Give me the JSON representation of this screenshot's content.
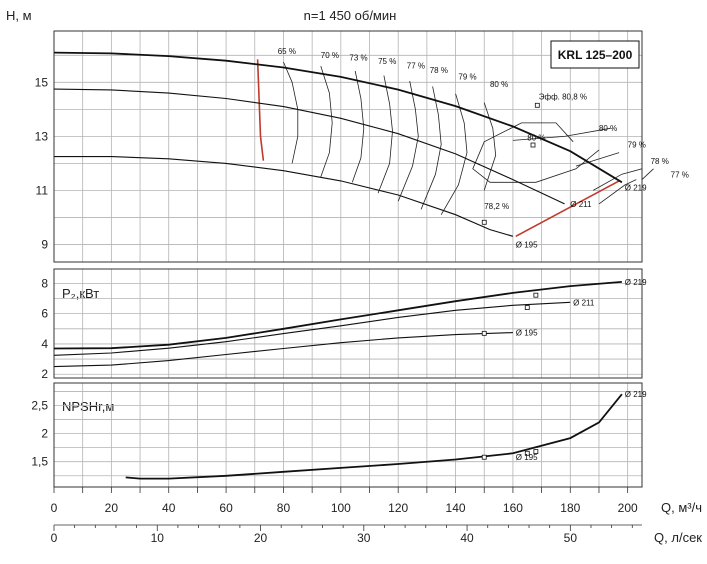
{
  "chart_data": {
    "type": "line",
    "title": "n=1 450 об/мин",
    "model": "KRL 125–200",
    "x_axis_m3h": {
      "label": "Q, м³/ч",
      "ticks": [
        0,
        20,
        40,
        60,
        80,
        100,
        120,
        140,
        160,
        180,
        200
      ],
      "range": [
        0,
        205
      ]
    },
    "x_axis_ls": {
      "label": "Q, л/сек",
      "ticks": [
        0,
        10,
        20,
        30,
        40,
        50
      ],
      "range": [
        0,
        56.94
      ]
    },
    "panels": {
      "head": {
        "ylabel": "Н, м",
        "yticks": [
          9,
          11,
          13,
          15
        ],
        "ylim": [
          8.35,
          16.9
        ],
        "series": [
          {
            "name": "Ø 219",
            "points": [
              [
                0,
                16.1
              ],
              [
                20,
                16.07
              ],
              [
                40,
                15.97
              ],
              [
                60,
                15.8
              ],
              [
                80,
                15.55
              ],
              [
                100,
                15.2
              ],
              [
                120,
                14.73
              ],
              [
                140,
                14.12
              ],
              [
                160,
                13.37
              ],
              [
                180,
                12.45
              ],
              [
                198,
                11.3
              ]
            ]
          },
          {
            "name": "Ø 211",
            "points": [
              [
                0,
                14.75
              ],
              [
                20,
                14.72
              ],
              [
                40,
                14.6
              ],
              [
                60,
                14.4
              ],
              [
                80,
                14.1
              ],
              [
                100,
                13.67
              ],
              [
                120,
                13.1
              ],
              [
                140,
                12.35
              ],
              [
                160,
                11.4
              ],
              [
                178,
                10.5
              ]
            ]
          },
          {
            "name": "Ø 195",
            "points": [
              [
                0,
                12.25
              ],
              [
                20,
                12.25
              ],
              [
                40,
                12.17
              ],
              [
                60,
                12.0
              ],
              [
                80,
                11.73
              ],
              [
                100,
                11.35
              ],
              [
                120,
                10.83
              ],
              [
                140,
                10.1
              ],
              [
                152,
                9.55
              ],
              [
                160,
                9.3
              ]
            ]
          }
        ],
        "efficiency_labels": [
          {
            "text": "65 %",
            "q": 78,
            "h": 16.05
          },
          {
            "text": "70 %",
            "q": 93,
            "h": 15.9
          },
          {
            "text": "73 %",
            "q": 103,
            "h": 15.8
          },
          {
            "text": "75 %",
            "q": 113,
            "h": 15.68
          },
          {
            "text": "77 %",
            "q": 123,
            "h": 15.52
          },
          {
            "text": "78 %",
            "q": 131,
            "h": 15.35
          },
          {
            "text": "79 %",
            "q": 141,
            "h": 15.1
          },
          {
            "text": "80 %",
            "q": 152,
            "h": 14.83
          },
          {
            "text": "Эфф. 80,8 %",
            "q": 169,
            "h": 14.37
          },
          {
            "text": "80 %",
            "q": 190,
            "h": 13.2
          },
          {
            "text": "79 %",
            "q": 200,
            "h": 12.58
          },
          {
            "text": "78 %",
            "q": 208,
            "h": 11.98
          },
          {
            "text": "77 %",
            "q": 215,
            "h": 11.48
          },
          {
            "text": "80 %",
            "q": 165,
            "h": 12.85
          },
          {
            "text": "78,2 %",
            "q": 150,
            "h": 10.32
          }
        ],
        "iso_efficiency_lines": [
          [
            [
              80,
              15.75
            ],
            [
              83,
              15.0
            ],
            [
              85,
              14.0
            ],
            [
              85,
              13.0
            ],
            [
              83,
              12.0
            ]
          ],
          [
            [
              93,
              15.6
            ],
            [
              96,
              14.6
            ],
            [
              97,
              13.5
            ],
            [
              96,
              12.4
            ],
            [
              93,
              11.5
            ]
          ],
          [
            [
              105,
              15.42
            ],
            [
              107,
              14.4
            ],
            [
              108,
              13.3
            ],
            [
              107,
              12.2
            ],
            [
              104,
              11.3
            ]
          ],
          [
            [
              115,
              15.25
            ],
            [
              117,
              14.2
            ],
            [
              118,
              13.2
            ],
            [
              117,
              12.0
            ],
            [
              113,
              10.9
            ]
          ],
          [
            [
              124,
              15.05
            ],
            [
              126,
              14.0
            ],
            [
              127,
              13.0
            ],
            [
              125,
              11.9
            ],
            [
              120,
              10.6
            ]
          ],
          [
            [
              132,
              14.85
            ],
            [
              134,
              13.8
            ],
            [
              135,
              12.7
            ],
            [
              133,
              11.6
            ],
            [
              128,
              10.3
            ]
          ],
          [
            [
              140,
              14.58
            ],
            [
              143,
              13.5
            ],
            [
              144,
              12.4
            ],
            [
              141,
              11.2
            ],
            [
              135,
              10.1
            ]
          ],
          [
            [
              150,
              14.25
            ],
            [
              153,
              13.3
            ],
            [
              154,
              12.3
            ],
            [
              150,
              11.0
            ]
          ],
          [
            [
              181,
              12.8
            ],
            [
              175,
              13.5
            ],
            [
              163,
              13.5
            ],
            [
              150,
              12.8
            ],
            [
              146,
              11.8
            ],
            [
              152,
              11.3
            ],
            [
              168,
              11.3
            ],
            [
              182,
              11.8
            ],
            [
              190,
              12.5
            ]
          ],
          [
            [
              160,
              12.85
            ],
            [
              178,
              13.0
            ],
            [
              194,
              13.3
            ]
          ],
          [
            [
              182,
              11.9
            ],
            [
              197,
              12.4
            ]
          ],
          [
            [
              188,
              11.0
            ],
            [
              198,
              11.6
            ],
            [
              205,
              11.8
            ]
          ],
          [
            [
              190,
              10.5
            ],
            [
              199,
              11.2
            ],
            [
              203,
              11.4
            ]
          ],
          [
            [
              205,
              11.4
            ],
            [
              209,
              11.8
            ]
          ]
        ],
        "min_max_lines": [
          [
            [
              71,
              15.85
            ],
            [
              72,
              13.0
            ],
            [
              73,
              12.1
            ]
          ],
          [
            [
              161,
              9.3
            ],
            [
              197,
              11.35
            ]
          ]
        ],
        "markers": [
          [
            167,
            12.68
          ],
          [
            168.5,
            14.15
          ],
          [
            150,
            9.82
          ]
        ],
        "diameter_labels": [
          {
            "text": "Ø 219",
            "q": 199,
            "h": 11.1
          },
          {
            "text": "Ø 211",
            "q": 180,
            "h": 10.5
          },
          {
            "text": "Ø 195",
            "q": 161,
            "h": 9.0
          }
        ]
      },
      "power": {
        "ylabel": "P₂,кВт",
        "yticks": [
          2,
          4,
          6,
          8
        ],
        "ylim": [
          1.75,
          8.95
        ],
        "series": [
          {
            "name": "Ø 219",
            "points": [
              [
                0,
                3.7
              ],
              [
                20,
                3.72
              ],
              [
                40,
                3.95
              ],
              [
                60,
                4.4
              ],
              [
                80,
                5.0
              ],
              [
                100,
                5.62
              ],
              [
                120,
                6.22
              ],
              [
                140,
                6.82
              ],
              [
                160,
                7.37
              ],
              [
                180,
                7.82
              ],
              [
                198,
                8.1
              ]
            ]
          },
          {
            "name": "Ø 211",
            "points": [
              [
                0,
                3.25
              ],
              [
                20,
                3.4
              ],
              [
                40,
                3.72
              ],
              [
                60,
                4.15
              ],
              [
                80,
                4.68
              ],
              [
                100,
                5.2
              ],
              [
                120,
                5.75
              ],
              [
                140,
                6.22
              ],
              [
                160,
                6.55
              ],
              [
                180,
                6.75
              ]
            ]
          },
          {
            "name": "Ø 195",
            "points": [
              [
                0,
                2.5
              ],
              [
                20,
                2.6
              ],
              [
                40,
                2.9
              ],
              [
                60,
                3.3
              ],
              [
                80,
                3.7
              ],
              [
                100,
                4.08
              ],
              [
                120,
                4.4
              ],
              [
                140,
                4.62
              ],
              [
                160,
                4.75
              ]
            ]
          }
        ],
        "markers": [
          [
            168,
            7.22
          ],
          [
            165,
            6.4
          ],
          [
            150,
            4.7
          ]
        ],
        "diameter_labels": [
          {
            "text": "Ø 219",
            "q": 199,
            "v": 8.1
          },
          {
            "text": "Ø 211",
            "q": 181,
            "v": 6.75
          },
          {
            "text": "Ø 195",
            "q": 161,
            "v": 4.75
          }
        ]
      },
      "npsh": {
        "ylabel": "NPSHr,м",
        "yticks": [
          1.5,
          2,
          2.5
        ],
        "ylim": [
          1.05,
          2.9
        ],
        "series": [
          {
            "name": "Ø 219",
            "points": [
              [
                25,
                1.22
              ],
              [
                30,
                1.2
              ],
              [
                40,
                1.2
              ],
              [
                60,
                1.25
              ],
              [
                80,
                1.32
              ],
              [
                100,
                1.39
              ],
              [
                120,
                1.46
              ],
              [
                140,
                1.54
              ],
              [
                160,
                1.65
              ],
              [
                180,
                1.92
              ],
              [
                190,
                2.2
              ],
              [
                198,
                2.7
              ]
            ]
          }
        ],
        "markers": [
          [
            150,
            1.58
          ],
          [
            165,
            1.65
          ],
          [
            168,
            1.68
          ]
        ],
        "diameter_labels": [
          {
            "text": "Ø 219",
            "q": 199,
            "v": 2.7
          },
          {
            "text": "Ø 195",
            "q": 161,
            "v": 1.58
          }
        ]
      }
    }
  }
}
